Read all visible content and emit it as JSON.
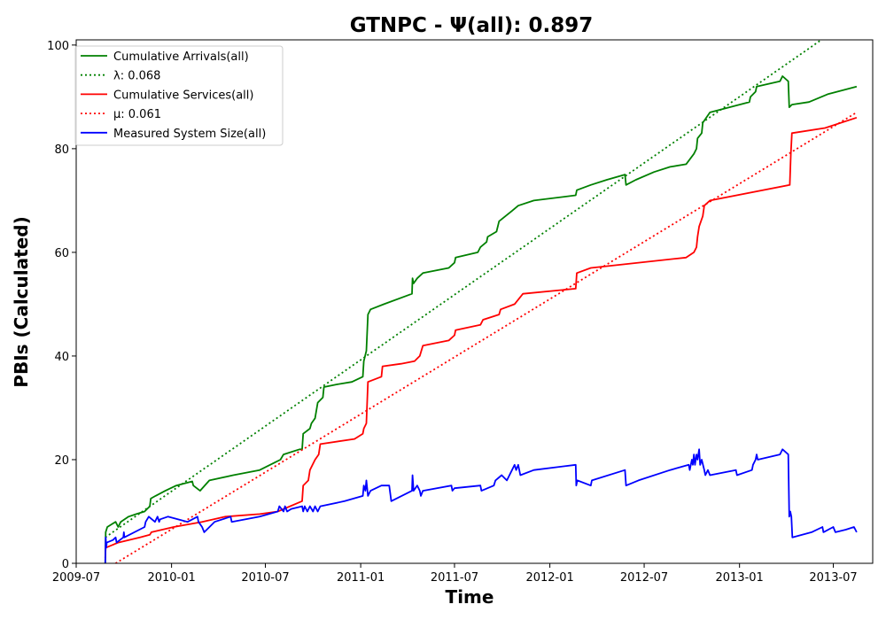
{
  "chart_data": {
    "type": "line",
    "title": "GTNPC -  Ψ(all): 0.897",
    "xlabel": "Time",
    "ylabel": "PBIs (Calculated)",
    "xlim": [
      "2009-07-01",
      "2013-09-15"
    ],
    "ylim": [
      0,
      101
    ],
    "x_ticks": [
      "2009-07",
      "2010-01",
      "2010-07",
      "2011-01",
      "2011-07",
      "2012-01",
      "2012-07",
      "2013-01",
      "2013-07"
    ],
    "y_ticks": [
      0,
      20,
      40,
      60,
      80,
      100
    ],
    "grid": false,
    "legend_position": "upper-left",
    "series": [
      {
        "name": "Cumulative Arrivals(all)",
        "style": "solid",
        "color": "#008000",
        "points": [
          [
            "2009-08-26",
            0
          ],
          [
            "2009-08-27",
            6
          ],
          [
            "2009-08-30",
            7
          ],
          [
            "2009-09-15",
            8
          ],
          [
            "2009-09-20",
            7
          ],
          [
            "2009-09-25",
            8
          ],
          [
            "2009-10-10",
            9
          ],
          [
            "2009-10-25",
            9.5
          ],
          [
            "2009-11-10",
            10
          ],
          [
            "2009-11-20",
            11
          ],
          [
            "2009-11-22",
            12.5
          ],
          [
            "2009-12-01",
            13
          ],
          [
            "2009-12-20",
            14
          ],
          [
            "2010-01-10",
            15
          ],
          [
            "2010-02-10",
            15.8
          ],
          [
            "2010-02-12",
            15
          ],
          [
            "2010-02-25",
            14
          ],
          [
            "2010-03-15",
            16
          ],
          [
            "2010-04-30",
            17
          ],
          [
            "2010-06-20",
            18
          ],
          [
            "2010-07-20",
            19.5
          ],
          [
            "2010-07-30",
            20
          ],
          [
            "2010-08-05",
            21
          ],
          [
            "2010-09-05",
            22
          ],
          [
            "2010-09-10",
            22
          ],
          [
            "2010-09-12",
            25
          ],
          [
            "2010-09-25",
            26
          ],
          [
            "2010-09-28",
            27
          ],
          [
            "2010-10-05",
            28
          ],
          [
            "2010-10-10",
            31
          ],
          [
            "2010-10-20",
            32
          ],
          [
            "2010-10-22",
            34
          ],
          [
            "2010-11-15",
            34.5
          ],
          [
            "2010-12-15",
            35
          ],
          [
            "2011-01-05",
            36
          ],
          [
            "2011-01-07",
            39
          ],
          [
            "2011-01-12",
            41
          ],
          [
            "2011-01-15",
            48
          ],
          [
            "2011-01-20",
            49
          ],
          [
            "2011-02-15",
            50
          ],
          [
            "2011-04-10",
            52
          ],
          [
            "2011-04-11",
            55
          ],
          [
            "2011-04-13",
            54
          ],
          [
            "2011-04-20",
            55
          ],
          [
            "2011-05-01",
            56
          ],
          [
            "2011-06-20",
            57
          ],
          [
            "2011-07-01",
            58
          ],
          [
            "2011-07-03",
            59
          ],
          [
            "2011-08-15",
            60
          ],
          [
            "2011-08-20",
            61
          ],
          [
            "2011-09-01",
            62
          ],
          [
            "2011-09-03",
            63
          ],
          [
            "2011-09-20",
            64
          ],
          [
            "2011-09-25",
            66
          ],
          [
            "2011-10-20",
            68
          ],
          [
            "2011-11-01",
            69
          ],
          [
            "2011-12-01",
            70
          ],
          [
            "2012-02-20",
            71
          ],
          [
            "2012-02-22",
            72
          ],
          [
            "2012-03-20",
            73
          ],
          [
            "2012-04-20",
            74
          ],
          [
            "2012-05-25",
            75
          ],
          [
            "2012-05-27",
            73
          ],
          [
            "2012-06-15",
            74
          ],
          [
            "2012-07-20",
            75.5
          ],
          [
            "2012-08-20",
            76.5
          ],
          [
            "2012-09-20",
            77
          ],
          [
            "2012-10-05",
            79
          ],
          [
            "2012-10-10",
            80
          ],
          [
            "2012-10-12",
            82
          ],
          [
            "2012-10-20",
            83
          ],
          [
            "2012-10-22",
            85
          ],
          [
            "2012-11-05",
            87
          ],
          [
            "2013-01-20",
            89
          ],
          [
            "2013-01-22",
            90
          ],
          [
            "2013-02-01",
            91
          ],
          [
            "2013-02-03",
            92
          ],
          [
            "2013-03-20",
            93
          ],
          [
            "2013-03-25",
            94
          ],
          [
            "2013-04-05",
            93
          ],
          [
            "2013-04-07",
            88
          ],
          [
            "2013-04-12",
            88.5
          ],
          [
            "2013-05-15",
            89
          ],
          [
            "2013-06-20",
            90.5
          ],
          [
            "2013-08-15",
            92
          ]
        ]
      },
      {
        "name": "λ: 0.068",
        "style": "dotted",
        "color": "#008000",
        "points": [
          [
            "2009-08-26",
            5
          ],
          [
            "2013-06-15",
            101.5
          ]
        ]
      },
      {
        "name": "Cumulative Services(all)",
        "style": "solid",
        "color": "#ff0000",
        "points": [
          [
            "2009-08-26",
            1
          ],
          [
            "2009-08-27",
            3
          ],
          [
            "2009-09-20",
            4
          ],
          [
            "2009-11-01",
            5
          ],
          [
            "2009-11-20",
            5.5
          ],
          [
            "2009-11-23",
            6
          ],
          [
            "2010-01-05",
            7
          ],
          [
            "2010-03-01",
            8
          ],
          [
            "2010-04-15",
            9
          ],
          [
            "2010-06-20",
            9.5
          ],
          [
            "2010-07-25",
            10
          ],
          [
            "2010-09-10",
            12
          ],
          [
            "2010-09-12",
            15
          ],
          [
            "2010-09-22",
            16
          ],
          [
            "2010-09-25",
            18
          ],
          [
            "2010-10-05",
            20
          ],
          [
            "2010-10-12",
            21
          ],
          [
            "2010-10-15",
            23
          ],
          [
            "2010-12-20",
            24
          ],
          [
            "2011-01-05",
            25
          ],
          [
            "2011-01-07",
            26
          ],
          [
            "2011-01-12",
            27
          ],
          [
            "2011-01-15",
            35
          ],
          [
            "2011-02-10",
            36
          ],
          [
            "2011-02-12",
            38
          ],
          [
            "2011-03-20",
            38.5
          ],
          [
            "2011-04-15",
            39
          ],
          [
            "2011-04-25",
            40
          ],
          [
            "2011-05-01",
            42
          ],
          [
            "2011-06-20",
            43
          ],
          [
            "2011-07-01",
            44
          ],
          [
            "2011-07-03",
            45
          ],
          [
            "2011-08-20",
            46
          ],
          [
            "2011-08-25",
            47
          ],
          [
            "2011-09-25",
            48
          ],
          [
            "2011-09-28",
            49
          ],
          [
            "2011-10-25",
            50
          ],
          [
            "2011-11-10",
            52
          ],
          [
            "2012-02-20",
            53
          ],
          [
            "2012-02-22",
            56
          ],
          [
            "2012-03-20",
            57
          ],
          [
            "2012-06-20",
            58
          ],
          [
            "2012-09-20",
            59
          ],
          [
            "2012-10-05",
            60
          ],
          [
            "2012-10-10",
            61
          ],
          [
            "2012-10-12",
            63
          ],
          [
            "2012-10-15",
            65
          ],
          [
            "2012-10-22",
            67
          ],
          [
            "2012-10-25",
            69
          ],
          [
            "2012-11-05",
            70
          ],
          [
            "2013-04-08",
            73
          ],
          [
            "2013-04-10",
            79
          ],
          [
            "2013-04-12",
            83
          ],
          [
            "2013-06-15",
            84
          ],
          [
            "2013-08-15",
            86
          ]
        ]
      },
      {
        "name": "μ: 0.061",
        "style": "dotted",
        "color": "#ff0000",
        "points": [
          [
            "2009-09-15",
            0
          ],
          [
            "2013-08-15",
            87
          ]
        ]
      },
      {
        "name": "Measured System Size(all)",
        "style": "solid",
        "color": "#0000ff",
        "points": [
          [
            "2009-08-26",
            0
          ],
          [
            "2009-08-27",
            5
          ],
          [
            "2009-08-28",
            3
          ],
          [
            "2009-08-29",
            4
          ],
          [
            "2009-09-10",
            4.5
          ],
          [
            "2009-09-15",
            5
          ],
          [
            "2009-09-17",
            4
          ],
          [
            "2009-09-30",
            5
          ],
          [
            "2009-10-01",
            6
          ],
          [
            "2009-10-02",
            5
          ],
          [
            "2009-11-10",
            7
          ],
          [
            "2009-11-12",
            8
          ],
          [
            "2009-11-18",
            9
          ],
          [
            "2009-11-30",
            8
          ],
          [
            "2009-12-05",
            9
          ],
          [
            "2009-12-08",
            8
          ],
          [
            "2009-12-10",
            8.5
          ],
          [
            "2009-12-25",
            9
          ],
          [
            "2010-02-01",
            8
          ],
          [
            "2010-02-20",
            9
          ],
          [
            "2010-02-22",
            8
          ],
          [
            "2010-03-01",
            7
          ],
          [
            "2010-03-05",
            6
          ],
          [
            "2010-03-25",
            8
          ],
          [
            "2010-04-25",
            9
          ],
          [
            "2010-04-27",
            8
          ],
          [
            "2010-06-20",
            9
          ],
          [
            "2010-07-25",
            10
          ],
          [
            "2010-07-28",
            11
          ],
          [
            "2010-08-05",
            10
          ],
          [
            "2010-08-08",
            11
          ],
          [
            "2010-08-12",
            10
          ],
          [
            "2010-08-20",
            10.5
          ],
          [
            "2010-09-10",
            11
          ],
          [
            "2010-09-12",
            10
          ],
          [
            "2010-09-15",
            11
          ],
          [
            "2010-09-20",
            10
          ],
          [
            "2010-09-25",
            11
          ],
          [
            "2010-10-01",
            10
          ],
          [
            "2010-10-05",
            11
          ],
          [
            "2010-10-10",
            10
          ],
          [
            "2010-10-15",
            11
          ],
          [
            "2010-12-01",
            12
          ],
          [
            "2011-01-05",
            13
          ],
          [
            "2011-01-07",
            15
          ],
          [
            "2011-01-10",
            14
          ],
          [
            "2011-01-12",
            16
          ],
          [
            "2011-01-15",
            13
          ],
          [
            "2011-01-20",
            14
          ],
          [
            "2011-02-10",
            15
          ],
          [
            "2011-02-25",
            15
          ],
          [
            "2011-03-01",
            12
          ],
          [
            "2011-04-10",
            14
          ],
          [
            "2011-04-11",
            17
          ],
          [
            "2011-04-13",
            14
          ],
          [
            "2011-04-20",
            15
          ],
          [
            "2011-04-25",
            14
          ],
          [
            "2011-04-27",
            13
          ],
          [
            "2011-05-01",
            14
          ],
          [
            "2011-06-25",
            15
          ],
          [
            "2011-06-27",
            14
          ],
          [
            "2011-07-01",
            14.5
          ],
          [
            "2011-08-20",
            15
          ],
          [
            "2011-08-22",
            14
          ],
          [
            "2011-09-15",
            15
          ],
          [
            "2011-09-18",
            16
          ],
          [
            "2011-09-30",
            17
          ],
          [
            "2011-10-10",
            16
          ],
          [
            "2011-10-20",
            18
          ],
          [
            "2011-10-25",
            19
          ],
          [
            "2011-10-28",
            18
          ],
          [
            "2011-11-01",
            19
          ],
          [
            "2011-11-05",
            17
          ],
          [
            "2011-12-01",
            18
          ],
          [
            "2012-02-20",
            19
          ],
          [
            "2012-02-21",
            15
          ],
          [
            "2012-02-23",
            16
          ],
          [
            "2012-03-20",
            15
          ],
          [
            "2012-03-22",
            16
          ],
          [
            "2012-05-25",
            18
          ],
          [
            "2012-05-27",
            15
          ],
          [
            "2012-06-20",
            16
          ],
          [
            "2012-08-20",
            18
          ],
          [
            "2012-09-25",
            19
          ],
          [
            "2012-09-27",
            18
          ],
          [
            "2012-10-01",
            20
          ],
          [
            "2012-10-03",
            19
          ],
          [
            "2012-10-05",
            21
          ],
          [
            "2012-10-07",
            19
          ],
          [
            "2012-10-10",
            21
          ],
          [
            "2012-10-12",
            20
          ],
          [
            "2012-10-15",
            22
          ],
          [
            "2012-10-17",
            19
          ],
          [
            "2012-10-20",
            20
          ],
          [
            "2012-10-25",
            18
          ],
          [
            "2012-10-27",
            17
          ],
          [
            "2012-11-01",
            18
          ],
          [
            "2012-11-05",
            17
          ],
          [
            "2012-12-25",
            18
          ],
          [
            "2012-12-27",
            17
          ],
          [
            "2013-01-25",
            18
          ],
          [
            "2013-01-27",
            19
          ],
          [
            "2013-02-01",
            20
          ],
          [
            "2013-02-03",
            21
          ],
          [
            "2013-02-05",
            20
          ],
          [
            "2013-03-20",
            21
          ],
          [
            "2013-03-25",
            22
          ],
          [
            "2013-04-05",
            21
          ],
          [
            "2013-04-07",
            9
          ],
          [
            "2013-04-09",
            10
          ],
          [
            "2013-04-11",
            9
          ],
          [
            "2013-04-13",
            5
          ],
          [
            "2013-05-20",
            6
          ],
          [
            "2013-06-10",
            7
          ],
          [
            "2013-06-12",
            6
          ],
          [
            "2013-07-01",
            7
          ],
          [
            "2013-07-05",
            6
          ],
          [
            "2013-07-25",
            6.5
          ],
          [
            "2013-08-10",
            7
          ],
          [
            "2013-08-15",
            6
          ]
        ]
      }
    ]
  }
}
